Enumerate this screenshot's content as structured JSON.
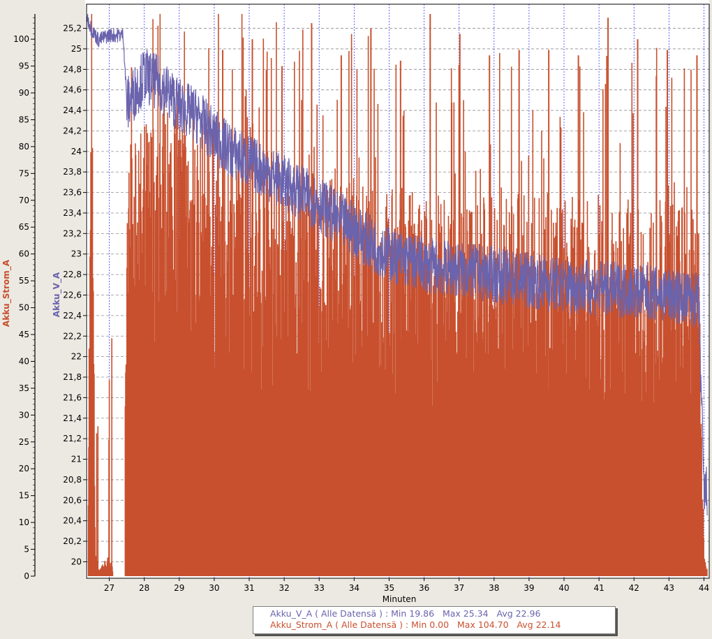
{
  "chart_data": {
    "type": "line",
    "x_label": "Minuten",
    "x_ticks": [
      27,
      28,
      29,
      30,
      31,
      32,
      33,
      34,
      35,
      36,
      37,
      38,
      39,
      40,
      41,
      42,
      43,
      44
    ],
    "xlim": [
      26.35,
      44.15
    ],
    "grid": true,
    "y_axes": [
      {
        "label": "Akku_Strom_A",
        "color": "#c8502e",
        "ylim": [
          0,
          104.7
        ],
        "ticks": [
          "0",
          "5",
          "10",
          "15",
          "20",
          "25",
          "30",
          "35",
          "40",
          "45",
          "50",
          "55",
          "60",
          "65",
          "70",
          "75",
          "80",
          "85",
          "90",
          "95",
          "100"
        ]
      },
      {
        "label": "Akku_V_A",
        "color": "#6a63ad",
        "ylim": [
          19.86,
          25.34
        ],
        "ticks": [
          "20",
          "20,2",
          "20,4",
          "20,6",
          "20,8",
          "21",
          "21,2",
          "21,4",
          "21,6",
          "21,8",
          "22",
          "22,2",
          "22,4",
          "22,6",
          "22,8",
          "23",
          "23,2",
          "23,4",
          "23,6",
          "23,8",
          "24",
          "24,2",
          "24,4",
          "24,6",
          "24,8",
          "25",
          "25,2"
        ]
      }
    ],
    "series": [
      {
        "name": "Akku_Strom_A",
        "color": "#c8502e",
        "x": [
          26.4,
          26.5,
          26.6,
          26.7,
          26.8,
          27.0,
          27.2,
          27.4,
          27.5,
          28.0,
          28.5,
          29.0,
          29.5,
          30.0,
          30.5,
          31.0,
          31.5,
          32.0,
          32.5,
          33.0,
          33.5,
          34.0,
          34.5,
          35.0,
          35.5,
          36.0,
          36.5,
          37.0,
          37.5,
          38.0,
          38.5,
          39.0,
          39.5,
          40.0,
          40.5,
          41.0,
          41.5,
          42.0,
          42.5,
          43.0,
          43.5,
          43.85,
          44.0,
          44.1
        ],
        "values": [
          24,
          85,
          5,
          1,
          2,
          3,
          0,
          0,
          60,
          66,
          70,
          70,
          67,
          66,
          64,
          62,
          62,
          60,
          58,
          58,
          57,
          57,
          56,
          56,
          56,
          55,
          55,
          55,
          55,
          55,
          55,
          55,
          55,
          55,
          54,
          54,
          54,
          54,
          54,
          54,
          54,
          54,
          3,
          1
        ],
        "peaks": [
          42,
          75,
          88,
          98,
          100,
          95,
          103,
          97,
          102,
          96,
          104.7,
          101,
          97,
          98,
          98,
          97,
          104,
          100,
          98,
          97
        ]
      },
      {
        "name": "Akku_V_A",
        "color": "#6a63ad",
        "x": [
          26.35,
          26.5,
          26.7,
          27.0,
          27.4,
          27.5,
          28.0,
          28.5,
          29.0,
          29.5,
          30.0,
          30.5,
          31.0,
          31.5,
          32.0,
          32.5,
          33.0,
          33.5,
          34.0,
          34.5,
          35.0,
          35.5,
          36.0,
          36.5,
          37.0,
          38.0,
          39.0,
          40.0,
          41.0,
          42.0,
          43.0,
          43.85,
          44.0,
          44.1
        ],
        "values": [
          25.34,
          25.2,
          25.1,
          25.15,
          25.15,
          24.5,
          24.8,
          24.7,
          24.5,
          24.4,
          24.2,
          24.05,
          23.95,
          23.85,
          23.75,
          23.65,
          23.55,
          23.4,
          23.3,
          23.15,
          23.05,
          23.0,
          22.95,
          22.92,
          22.9,
          22.85,
          22.8,
          22.75,
          22.72,
          22.7,
          22.65,
          22.6,
          20.7,
          20.75
        ]
      }
    ],
    "legend": [
      "Akku_V_A ( Alle Datensä ) : Min 19.86   Max 25.34   Avg 22.96",
      "Akku_Strom_A ( Alle Datensä ) : Min 0.00   Max 104.70   Avg 22.14"
    ]
  }
}
